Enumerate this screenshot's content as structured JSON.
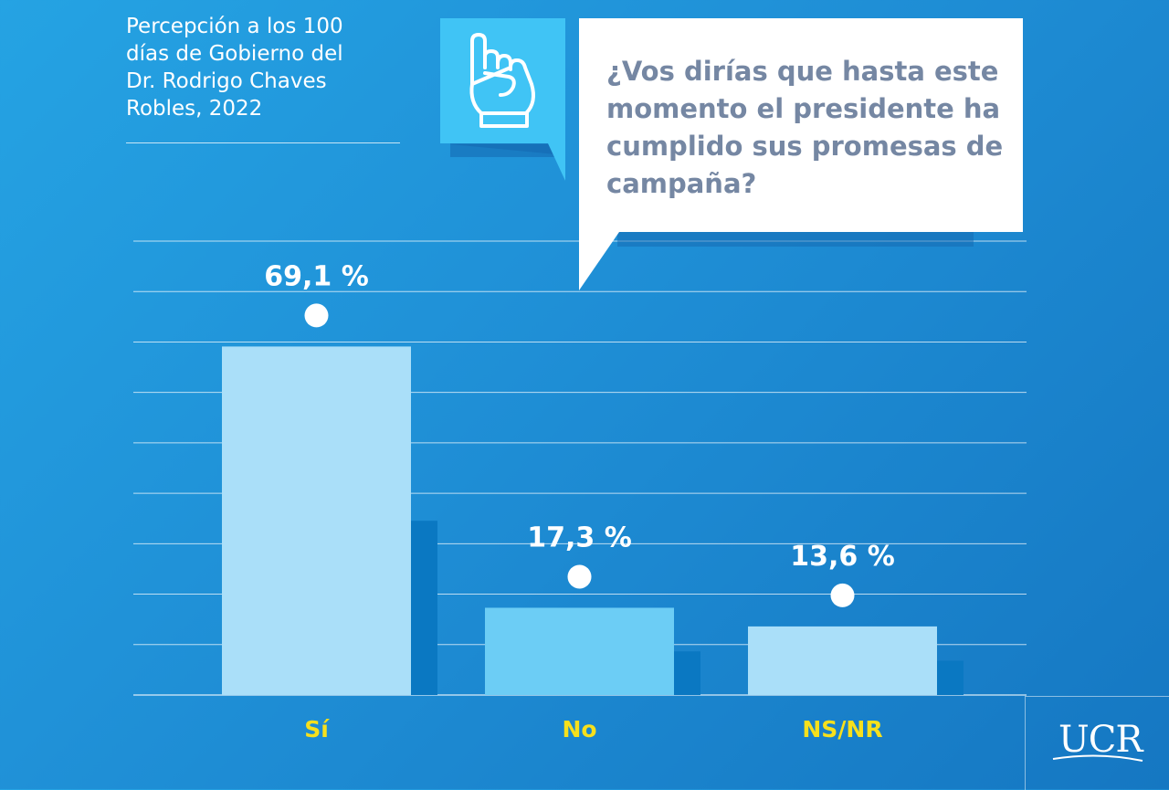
{
  "subtitle": "Percepción a los 100\ndías de Gobierno del\nDr. Rodrigo Chaves\nRobles, 2022",
  "question": "¿Vos dirías que hasta este momento el presidente ha cumplido sus promesas de campaña?",
  "logo_text": "UCR",
  "icon": "raised-fist-pointing-up-icon",
  "colors": {
    "background": "#1f8fd6",
    "bar_light": "#aadff9",
    "bar_mid": "#6ccdf5",
    "bar_shadow": "#0a78c2",
    "category_label": "#f7e01c",
    "question_text": "#7587a3",
    "icon_box": "#40c4f5"
  },
  "chart_data": {
    "type": "bar",
    "categories": [
      "Sí",
      "No",
      "NS/NR"
    ],
    "values": [
      69.1,
      17.3,
      13.6
    ],
    "value_labels": [
      "69,1 %",
      "17,3 %",
      "13,6 %"
    ],
    "title": "",
    "xlabel": "",
    "ylabel": "",
    "ylim": [
      0,
      90
    ],
    "grid": true,
    "legend": "none"
  }
}
